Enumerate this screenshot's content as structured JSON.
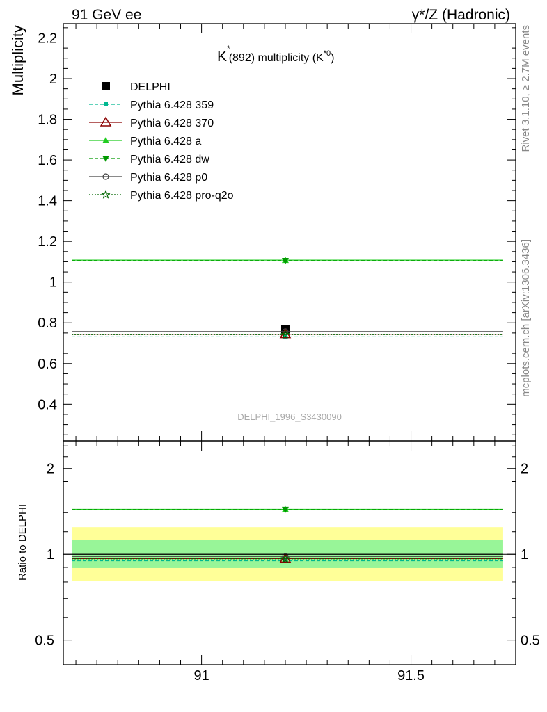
{
  "header": {
    "left": "91 GeV ee",
    "right": "γ*/Z (Hadronic)"
  },
  "title_parts": {
    "k": "K",
    "star": "*",
    "mid": "(892) multiplicity (K",
    "sup": "*0",
    "close": ")"
  },
  "side_labels": {
    "rivet": "Rivet 3.1.10, ≥ 2.7M events",
    "mcplots": "mcplots.cern.ch [arXiv:1306.3436]"
  },
  "watermark": "DELPHI_1996_S3430090",
  "colors": {
    "delphi": "#000000",
    "p359": "#00b890",
    "p370": "#8b0000",
    "pa": "#22cc22",
    "pdw": "#009900",
    "pp0": "#444444",
    "pq2o": "#006600",
    "band_inner": "#98f598",
    "band_outer": "#ffff98"
  },
  "chart_data": [
    {
      "type": "line",
      "xlim": [
        90.67,
        91.75
      ],
      "ylim": [
        0.22,
        2.27
      ],
      "ylabel": "Multiplicity",
      "yticks": [
        0.4,
        0.6,
        0.8,
        1,
        1.2,
        1.4,
        1.6,
        1.8,
        2,
        2.2
      ],
      "ytick_labels": [
        "0.4",
        "0.6",
        "0.8",
        "1",
        "1.2",
        "1.4",
        "1.6",
        "1.8",
        "2",
        "2.2"
      ],
      "legend_position": "top-left",
      "series": [
        {
          "key": "delphi",
          "name": "DELPHI",
          "x": 91.2,
          "xlo": 91.2,
          "xhi": 91.2,
          "y": 0.77,
          "yerr": 0.015,
          "marker": "square",
          "dash": "none"
        },
        {
          "key": "p359",
          "name": "Pythia 6.428 359",
          "x": 91.2,
          "xlo": 90.69,
          "xhi": 91.72,
          "y": 0.731,
          "yerr": 0.004,
          "marker": "square-small",
          "dash": "dashed"
        },
        {
          "key": "p370",
          "name": "Pythia 6.428 370",
          "x": 91.2,
          "xlo": 90.69,
          "xhi": 91.72,
          "y": 0.744,
          "yerr": 0.004,
          "marker": "triangle-open",
          "dash": "solid"
        },
        {
          "key": "pa",
          "name": "Pythia 6.428 a",
          "x": 91.2,
          "xlo": 90.69,
          "xhi": 91.72,
          "y": 1.108,
          "yerr": 0.008,
          "marker": "triangle-filled",
          "dash": "solid"
        },
        {
          "key": "pdw",
          "name": "Pythia 6.428 dw",
          "x": 91.2,
          "xlo": 90.69,
          "xhi": 91.72,
          "y": 1.105,
          "yerr": 0.008,
          "marker": "triangle-down",
          "dash": "dashed"
        },
        {
          "key": "pp0",
          "name": "Pythia 6.428 p0",
          "x": 91.2,
          "xlo": 90.69,
          "xhi": 91.72,
          "y": 0.757,
          "yerr": 0.004,
          "marker": "circle-open",
          "dash": "solid"
        },
        {
          "key": "pq2o",
          "name": "Pythia 6.428 pro-q2o",
          "x": 91.2,
          "xlo": 90.69,
          "xhi": 91.72,
          "y": 0.742,
          "yerr": 0.004,
          "marker": "star-open",
          "dash": "dotted"
        }
      ]
    },
    {
      "type": "line",
      "xlim": [
        90.67,
        91.75
      ],
      "ylim": [
        0.41,
        2.5
      ],
      "yscale": "log",
      "ylabel": "Ratio to DELPHI",
      "xticks": [
        91,
        91.5
      ],
      "xtick_labels": [
        "91",
        "91.5"
      ],
      "yticks": [
        0.5,
        1,
        2
      ],
      "ytick_labels": [
        "0.5",
        "1",
        "2"
      ],
      "bands": [
        {
          "key": "band_outer",
          "xlo": 90.69,
          "xhi": 91.72,
          "ylo": 0.805,
          "yhi": 1.245
        },
        {
          "key": "band_inner",
          "xlo": 90.69,
          "xhi": 91.72,
          "ylo": 0.895,
          "yhi": 1.125
        }
      ],
      "series": [
        {
          "key": "delphi",
          "xlo": 90.69,
          "xhi": 91.72,
          "y": 1.0,
          "dash": "solid",
          "marker": "none"
        },
        {
          "key": "p359",
          "xlo": 90.69,
          "xhi": 91.72,
          "y": 0.949,
          "dash": "dashed",
          "marker": "square-small"
        },
        {
          "key": "p370",
          "xlo": 90.69,
          "xhi": 91.72,
          "y": 0.966,
          "dash": "solid",
          "marker": "triangle-open"
        },
        {
          "key": "pa",
          "xlo": 90.69,
          "xhi": 91.72,
          "y": 1.438,
          "dash": "solid",
          "marker": "triangle-filled"
        },
        {
          "key": "pdw",
          "xlo": 90.69,
          "xhi": 91.72,
          "y": 1.435,
          "dash": "dashed",
          "marker": "triangle-down"
        },
        {
          "key": "pp0",
          "xlo": 90.69,
          "xhi": 91.72,
          "y": 0.983,
          "dash": "solid",
          "marker": "circle-open"
        },
        {
          "key": "pq2o",
          "xlo": 90.69,
          "xhi": 91.72,
          "y": 0.964,
          "dash": "dotted",
          "marker": "star-open"
        }
      ]
    }
  ]
}
